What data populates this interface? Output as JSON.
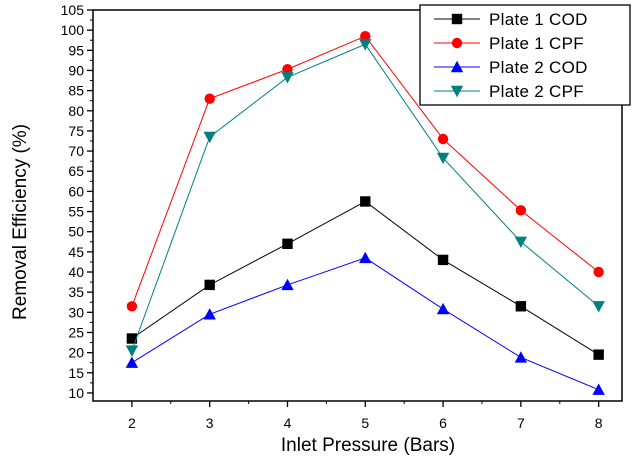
{
  "chart_data": {
    "type": "line",
    "title": "",
    "xlabel": "Inlet Pressure (Bars)",
    "ylabel": "Removal Efficiency (%)",
    "xlim": [
      1.5,
      8.3
    ],
    "ylim": [
      8,
      105
    ],
    "x_ticks": [
      2,
      3,
      4,
      5,
      6,
      7,
      8
    ],
    "y_ticks": [
      10,
      15,
      20,
      25,
      30,
      35,
      40,
      45,
      50,
      55,
      60,
      65,
      70,
      75,
      80,
      85,
      90,
      95,
      100,
      105
    ],
    "grid": false,
    "legend_position": "top-right",
    "x": [
      2,
      3,
      4,
      5,
      6,
      7,
      8
    ],
    "series": [
      {
        "name": "Plate 1 COD",
        "color": "#000000",
        "marker": "square",
        "values": [
          23.5,
          36.8,
          47.0,
          57.5,
          43.0,
          31.5,
          19.5
        ]
      },
      {
        "name": "Plate 1 CPF",
        "color": "#ff0000",
        "marker": "circle",
        "values": [
          31.5,
          83.0,
          90.3,
          98.5,
          73.0,
          55.3,
          40.0
        ]
      },
      {
        "name": "Plate 2 COD",
        "color": "#0000ff",
        "marker": "triangle-up",
        "values": [
          17.5,
          29.5,
          36.8,
          43.5,
          30.8,
          18.8,
          10.8
        ]
      },
      {
        "name": "Plate 2 CPF",
        "color": "#008080",
        "marker": "triangle-down",
        "values": [
          20.5,
          73.5,
          88.3,
          96.5,
          68.3,
          47.5,
          31.5
        ]
      }
    ]
  }
}
